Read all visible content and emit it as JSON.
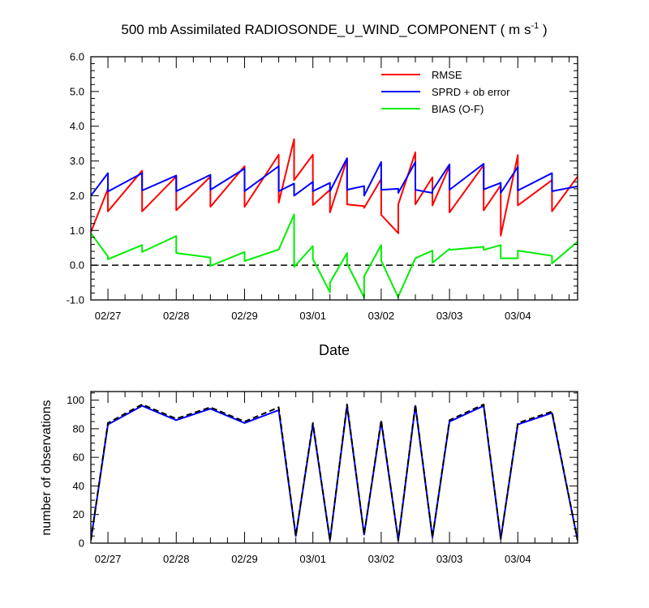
{
  "chart_data": [
    {
      "type": "line",
      "title_main": "500 mb Assimilated RADIOSONDE_U_WIND_COMPONENT ( m s",
      "title_sup": "-1",
      "title_end": " )",
      "xlabel": "Date",
      "ylabel": "",
      "ylim": [
        -1.0,
        6.0
      ],
      "yticks": [
        -1.0,
        0.0,
        1.0,
        2.0,
        3.0,
        4.0,
        5.0,
        6.0
      ],
      "ytick_labels": [
        "-1.0",
        "0.0",
        "1.0",
        "2.0",
        "3.0",
        "4.0",
        "5.0",
        "6.0"
      ],
      "xlim": [
        0,
        28.5
      ],
      "x_major_ticks": [
        1,
        5,
        9,
        13,
        17,
        21,
        25
      ],
      "x_tick_labels": [
        "02/27",
        "02/28",
        "02/29",
        "03/01",
        "03/02",
        "03/03",
        "03/04"
      ],
      "legend_position": "top-right",
      "zero_line": "dashed",
      "series": [
        {
          "name": "RMSE",
          "color": "#ff0000",
          "x": [
            0,
            1,
            1,
            3,
            3,
            5,
            5,
            7,
            7,
            9,
            9,
            11,
            11,
            11.9,
            11.9,
            13,
            13,
            14,
            14,
            15,
            15,
            16,
            16,
            17,
            17,
            18,
            18,
            19,
            19,
            20,
            20,
            21,
            21,
            23,
            23,
            24,
            24,
            25,
            25,
            27,
            27,
            28.5
          ],
          "y": [
            0.95,
            2.2,
            1.55,
            2.72,
            1.55,
            2.55,
            1.58,
            2.55,
            1.68,
            2.85,
            1.68,
            3.18,
            1.8,
            3.63,
            2.45,
            3.18,
            1.73,
            2.17,
            1.52,
            3.05,
            1.75,
            1.7,
            1.65,
            2.48,
            1.45,
            0.92,
            1.75,
            3.25,
            1.75,
            2.53,
            1.72,
            2.85,
            1.52,
            2.88,
            1.58,
            2.3,
            0.85,
            3.17,
            1.72,
            2.45,
            1.55,
            2.55
          ]
        },
        {
          "name": "SPRD + ob error",
          "color": "#0000ff",
          "x": [
            0,
            1,
            1,
            3,
            3,
            5,
            5,
            7,
            7,
            9,
            9,
            11,
            11,
            11.9,
            11.9,
            13,
            13,
            14,
            14,
            15,
            15,
            16,
            16,
            17,
            17,
            18,
            18,
            19,
            19,
            20,
            20,
            21,
            21,
            23,
            23,
            24,
            24,
            25,
            25,
            27,
            27,
            28.5
          ],
          "y": [
            2.0,
            2.65,
            2.12,
            2.65,
            2.15,
            2.58,
            2.13,
            2.6,
            2.17,
            2.78,
            2.13,
            2.85,
            2.13,
            2.35,
            2.0,
            2.4,
            2.13,
            2.37,
            2.13,
            3.08,
            2.17,
            2.28,
            2.0,
            2.97,
            2.17,
            2.2,
            2.08,
            2.97,
            2.17,
            2.08,
            2.15,
            2.9,
            2.17,
            2.92,
            2.18,
            2.37,
            2.08,
            2.83,
            2.15,
            2.65,
            2.13,
            2.27
          ]
        },
        {
          "name": "BIAS (O-F)",
          "color": "#00ee00",
          "x": [
            0,
            1,
            1,
            3,
            3,
            5,
            5,
            7,
            7,
            9,
            9,
            11,
            11,
            11.9,
            11.9,
            13,
            13,
            14,
            14,
            15,
            15,
            16,
            16,
            17,
            17,
            18,
            18,
            19,
            19,
            20,
            20,
            21,
            21,
            23,
            23,
            24,
            24,
            25,
            25,
            27,
            27,
            28.5
          ],
          "y": [
            0.92,
            0.25,
            0.17,
            0.58,
            0.38,
            0.84,
            0.35,
            0.22,
            -0.02,
            0.38,
            0.12,
            0.45,
            0.45,
            1.46,
            -0.05,
            0.55,
            0.18,
            -0.78,
            -0.5,
            0.35,
            0.05,
            -0.93,
            -0.32,
            0.58,
            0.13,
            -0.93,
            -0.9,
            0.2,
            0.2,
            0.42,
            0.07,
            0.47,
            0.44,
            0.53,
            0.44,
            0.58,
            0.2,
            0.2,
            0.42,
            0.27,
            0.05,
            0.68
          ]
        }
      ]
    },
    {
      "type": "line",
      "xlabel": "",
      "ylabel": "number of observations",
      "ylim": [
        0,
        106
      ],
      "yticks": [
        0,
        20,
        40,
        60,
        80,
        100
      ],
      "ytick_labels": [
        "0",
        "20",
        "40",
        "60",
        "80",
        "100"
      ],
      "xlim": [
        0,
        28.5
      ],
      "x_major_ticks": [
        1,
        5,
        9,
        13,
        17,
        21,
        25
      ],
      "x_tick_labels": [
        "02/27",
        "02/28",
        "02/29",
        "03/01",
        "03/02",
        "03/03",
        "03/04"
      ],
      "series": [
        {
          "color": "#0000ff",
          "style": "solid",
          "x": [
            0,
            1,
            3,
            5,
            7,
            9,
            11,
            12,
            13,
            14,
            15,
            16,
            17,
            18,
            19,
            20,
            21,
            23,
            24,
            25,
            27,
            28.5
          ],
          "y": [
            2,
            83,
            96,
            86,
            94,
            84,
            93,
            5,
            83,
            2,
            96,
            6,
            85,
            2,
            96,
            4,
            85,
            96,
            3,
            83,
            91,
            2
          ]
        },
        {
          "color": "#000000",
          "style": "dashed",
          "x": [
            0,
            1,
            3,
            5,
            7,
            9,
            11,
            12,
            13,
            14,
            15,
            16,
            17,
            18,
            19,
            20,
            21,
            23,
            24,
            25,
            27,
            28.5
          ],
          "y": [
            2,
            84,
            97,
            87,
            95,
            85,
            95,
            5,
            84,
            2,
            97,
            6,
            86,
            2,
            97,
            4,
            86,
            97,
            3,
            84,
            92,
            2
          ]
        }
      ]
    }
  ]
}
